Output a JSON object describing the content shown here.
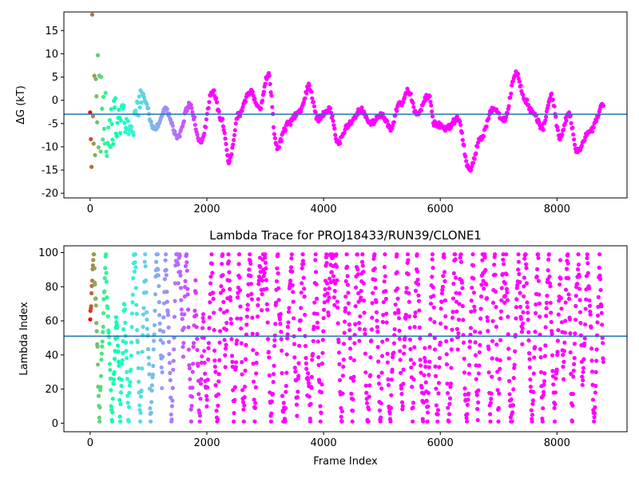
{
  "chart_data": [
    {
      "type": "scatter",
      "title": "",
      "xlabel": "",
      "ylabel": "ΔG (kT)",
      "xlim": [
        -450,
        9200
      ],
      "ylim": [
        -21,
        19
      ],
      "xticks": [
        0,
        2000,
        4000,
        6000,
        8000
      ],
      "yticks": [
        -20,
        -15,
        -10,
        -5,
        0,
        5,
        10,
        15
      ],
      "hline": -3,
      "hline_color": "#1f77b4",
      "colormap": "rainbow",
      "n_frames": 8800,
      "grid": false,
      "legend": "none"
    },
    {
      "type": "scatter",
      "title": "Lambda Trace for PROJ18433/RUN39/CLONE1",
      "xlabel": "Frame Index",
      "ylabel": "Lambda Index",
      "xlim": [
        -450,
        9200
      ],
      "ylim": [
        -5,
        104
      ],
      "xticks": [
        0,
        2000,
        4000,
        6000,
        8000
      ],
      "yticks": [
        0,
        20,
        40,
        60,
        80,
        100
      ],
      "hline": 51,
      "hline_color": "#1f77b4",
      "colormap": "rainbow",
      "n_frames": 8800,
      "grid": false,
      "legend": "none"
    }
  ]
}
